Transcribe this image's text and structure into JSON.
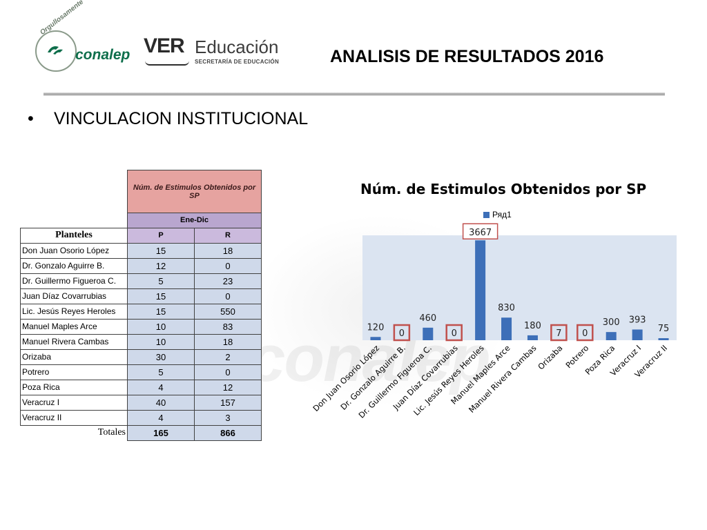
{
  "header": {
    "logo_left_text": "conalep",
    "logo_left_arc": "Orgullosamente",
    "logo_right_ver": "VER",
    "logo_right_edu": "Educación",
    "logo_right_sub": "SECRETARÍA DE EDUCACIÓN",
    "title": "ANALISIS DE RESULTADOS 2016"
  },
  "bullet": "VINCULACION INSTITUCIONAL",
  "watermark": "conalep",
  "table": {
    "header_title": "Núm. de Estimulos Obtenidos por SP",
    "period": "Ene-Dic",
    "col_name": "Planteles",
    "col_p": "P",
    "col_r": "R",
    "rows": [
      {
        "name": "Don Juan Osorio López",
        "p": "15",
        "r": "18"
      },
      {
        "name": "Dr. Gonzalo Aguirre B.",
        "p": "12",
        "r": "0"
      },
      {
        "name": "Dr. Guillermo Figueroa C.",
        "p": "5",
        "r": "23"
      },
      {
        "name": "Juan Díaz Covarrubias",
        "p": "15",
        "r": "0"
      },
      {
        "name": "Lic. Jesús Reyes Heroles",
        "p": "15",
        "r": "550"
      },
      {
        "name": "Manuel Maples Arce",
        "p": "10",
        "r": "83"
      },
      {
        "name": "Manuel Rivera Cambas",
        "p": "10",
        "r": "18"
      },
      {
        "name": "Orizaba",
        "p": "30",
        "r": "2"
      },
      {
        "name": "Potrero",
        "p": "5",
        "r": "0"
      },
      {
        "name": "Poza Rica",
        "p": "4",
        "r": "12"
      },
      {
        "name": "Veracruz I",
        "p": "40",
        "r": "157"
      },
      {
        "name": "Veracruz II",
        "p": "4",
        "r": "3"
      }
    ],
    "totals_label": "Totales",
    "total_p": "165",
    "total_r": "866"
  },
  "chart_data": {
    "type": "bar",
    "title": "Núm. de Estimulos Obtenidos por SP",
    "categories": [
      "Don Juan Osorio López",
      "Dr. Gonzalo Aguirre B.",
      "Dr. Guillermo Figueroa C.",
      "Juan Díaz Covarrubias",
      "Lic. Jesús Reyes Heroles",
      "Manuel Maples Arce",
      "Manuel Rivera Cambas",
      "Orizaba",
      "Potrero",
      "Poza Rica",
      "Veracruz I",
      "Veracruz II"
    ],
    "series": [
      {
        "name": "Ряд1",
        "values": [
          120,
          0,
          460,
          0,
          3667,
          830,
          180,
          7,
          0,
          300,
          393,
          75
        ]
      }
    ],
    "highlighted_categories": [
      "Dr. Gonzalo Aguirre B.",
      "Juan Díaz Covarrubias",
      "Orizaba",
      "Potrero"
    ],
    "ylim": [
      0,
      3850
    ],
    "grid": false,
    "legend_position": "top",
    "colors": {
      "bar": "#3d6fb8",
      "plot_bg": "#dbe4f1",
      "highlight_box": "#c0504d"
    }
  }
}
